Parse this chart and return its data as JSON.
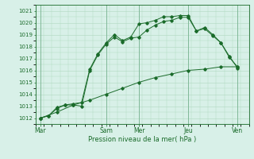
{
  "title": "",
  "xlabel": "Pression niveau de la mer( hPa )",
  "ylabel": "",
  "bg_color": "#d8f0e8",
  "plot_bg_color": "#d8f0e8",
  "grid_color": "#b0d8c0",
  "line_color": "#1a6b2a",
  "vline_color": "#80b898",
  "ylim": [
    1011.5,
    1021.5
  ],
  "xlim": [
    0,
    13
  ],
  "day_labels": [
    "Mar",
    "Sam",
    "Mer",
    "Jeu",
    "Ven"
  ],
  "day_positions": [
    0.3,
    4.3,
    6.3,
    9.3,
    12.3
  ],
  "vline_positions": [
    0.3,
    4.3,
    6.3,
    9.3,
    12.3
  ],
  "line1_x": [
    0.3,
    0.8,
    1.3,
    1.8,
    2.3,
    2.8,
    3.3,
    3.8,
    4.3,
    4.8,
    5.3,
    5.8,
    6.3,
    6.8,
    7.3,
    7.8,
    8.3,
    8.8,
    9.3,
    9.8,
    10.3,
    10.8,
    11.3,
    11.8,
    12.3
  ],
  "line1_y": [
    1012.0,
    1012.2,
    1012.8,
    1013.1,
    1013.1,
    1013.0,
    1016.0,
    1017.3,
    1018.2,
    1018.8,
    1018.4,
    1018.7,
    1018.8,
    1019.4,
    1019.8,
    1020.1,
    1020.2,
    1020.45,
    1020.45,
    1019.3,
    1019.5,
    1018.9,
    1018.3,
    1017.1,
    1016.3
  ],
  "line2_x": [
    0.3,
    0.8,
    1.3,
    1.8,
    2.3,
    2.8,
    3.3,
    3.8,
    4.3,
    4.8,
    5.3,
    5.8,
    6.3,
    6.8,
    7.3,
    7.8,
    8.3,
    8.8,
    9.3,
    9.8,
    10.3,
    10.8,
    11.3,
    11.8,
    12.3
  ],
  "line2_y": [
    1012.0,
    1012.2,
    1012.9,
    1013.1,
    1013.2,
    1013.3,
    1016.1,
    1017.4,
    1018.3,
    1019.0,
    1018.5,
    1018.8,
    1019.9,
    1020.0,
    1020.2,
    1020.5,
    1020.5,
    1020.6,
    1020.6,
    1019.3,
    1019.6,
    1019.0,
    1018.3,
    1017.2,
    1016.2
  ],
  "line3_x": [
    0.3,
    1.3,
    2.3,
    3.3,
    4.3,
    5.3,
    6.3,
    7.3,
    8.3,
    9.3,
    10.3,
    11.3,
    12.3
  ],
  "line3_y": [
    1012.0,
    1012.5,
    1013.1,
    1013.5,
    1014.0,
    1014.5,
    1015.0,
    1015.4,
    1015.7,
    1016.0,
    1016.1,
    1016.3,
    1016.3
  ],
  "yticks": [
    1012,
    1013,
    1014,
    1015,
    1016,
    1017,
    1018,
    1019,
    1020,
    1021
  ]
}
